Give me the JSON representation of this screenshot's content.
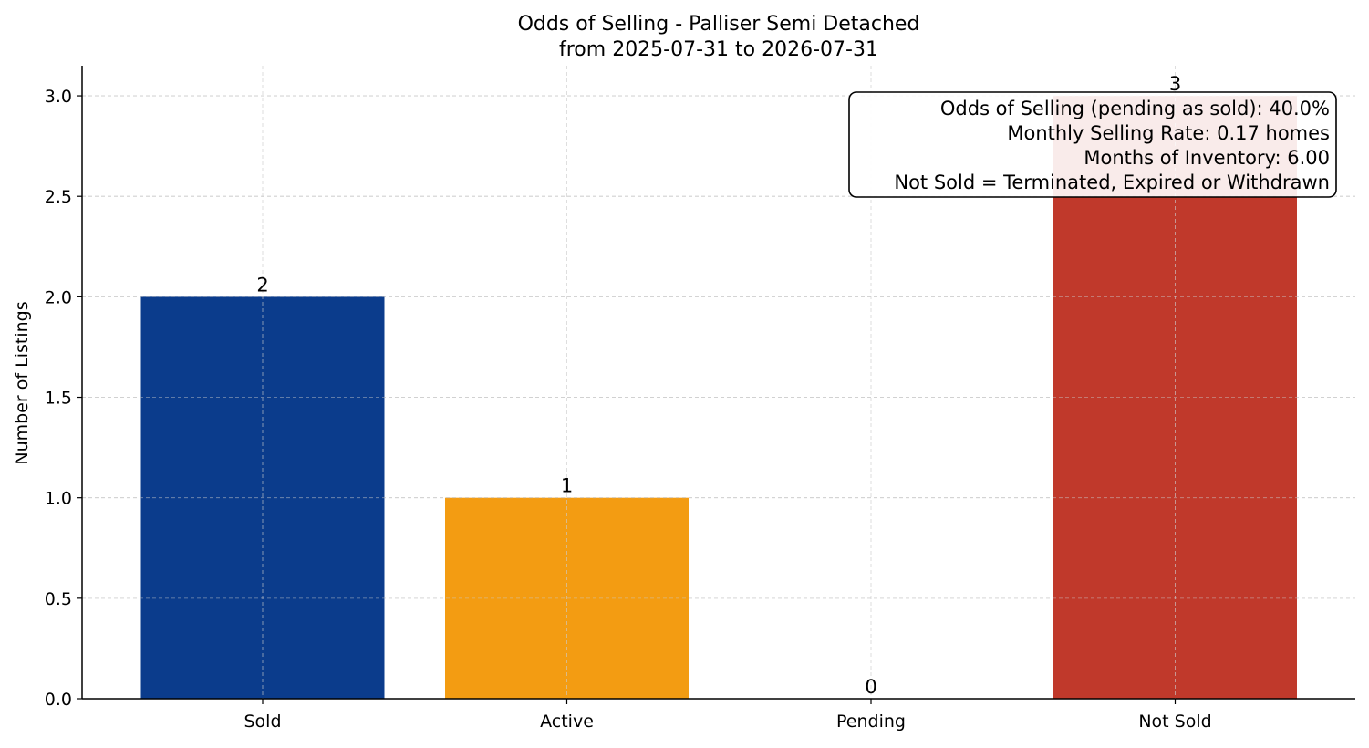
{
  "chart_data": {
    "type": "bar",
    "title": "Odds of Selling - Palliser Semi Detached",
    "subtitle": "from 2025-07-31 to 2026-07-31",
    "xlabel": "",
    "ylabel": "Number of Listings",
    "categories": [
      "Sold",
      "Active",
      "Pending",
      "Not Sold"
    ],
    "values": [
      2,
      1,
      0,
      3
    ],
    "data_labels": [
      "2",
      "1",
      "0",
      "3"
    ],
    "colors": [
      "#0b3c8c",
      "#f39c12",
      "#2e8b57",
      "#c0392b"
    ],
    "ylim": [
      0,
      3.15
    ],
    "yticks": [
      0.0,
      0.5,
      1.0,
      1.5,
      2.0,
      2.5,
      3.0
    ],
    "ytick_labels": [
      "0.0",
      "0.5",
      "1.0",
      "1.5",
      "2.0",
      "2.5",
      "3.0"
    ],
    "grid": true,
    "annotation_box": {
      "placement": "top-right",
      "lines": [
        "Odds of Selling (pending as sold): 40.0%",
        "Monthly Selling Rate: 0.17 homes",
        "Months of Inventory: 6.00",
        "Not Sold = Terminated, Expired or Withdrawn"
      ]
    }
  }
}
